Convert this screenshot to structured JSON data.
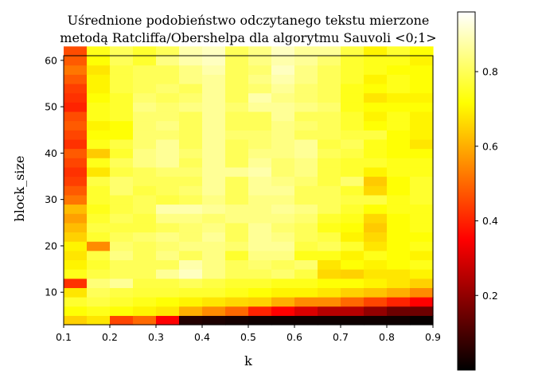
{
  "chart_data": {
    "type": "heatmap",
    "title_lines": [
      "Uśrednione podobieństwo odczytanego tekstu mierzone",
      "metodą Ratcliffa/Obershelpa dla algorytmu Sauvoli <0;1>"
    ],
    "xlabel": "k",
    "ylabel": "block_size",
    "x_range": [
      0.1,
      0.9
    ],
    "y_range": [
      3,
      61
    ],
    "x_ticks": [
      0.1,
      0.2,
      0.3,
      0.4,
      0.5,
      0.6,
      0.7,
      0.8,
      0.9
    ],
    "y_ticks": [
      10,
      20,
      30,
      40,
      50,
      60
    ],
    "x_tick_labels": [
      "0.1",
      "0.2",
      "0.3",
      "0.4",
      "0.5",
      "0.6",
      "0.7",
      "0.8",
      "0.9"
    ],
    "y_tick_labels": [
      "10",
      "20",
      "30",
      "40",
      "50",
      "60"
    ],
    "x_bin_start": 0.1,
    "x_bin_width": 0.05,
    "y_bin_start": 3,
    "y_bin_width": 2,
    "colormap": "hot",
    "colorbar": {
      "range": [
        0.0,
        0.96
      ],
      "ticks": [
        0.2,
        0.4,
        0.6,
        0.8
      ],
      "tick_labels": [
        "0.2",
        "0.4",
        "0.6",
        "0.8"
      ]
    },
    "values": [
      [
        0.65,
        0.68,
        0.45,
        0.5,
        0.35,
        0.05,
        0.04,
        0.03,
        0.02,
        0.02,
        0.02,
        0.02,
        0.02,
        0.02,
        0.02,
        0.01
      ],
      [
        0.72,
        0.74,
        0.72,
        0.7,
        0.68,
        0.6,
        0.55,
        0.5,
        0.4,
        0.35,
        0.3,
        0.25,
        0.25,
        0.2,
        0.15,
        0.15
      ],
      [
        0.76,
        0.78,
        0.76,
        0.74,
        0.72,
        0.7,
        0.68,
        0.66,
        0.65,
        0.6,
        0.55,
        0.55,
        0.5,
        0.45,
        0.4,
        0.35
      ],
      [
        0.68,
        0.8,
        0.78,
        0.77,
        0.77,
        0.76,
        0.76,
        0.74,
        0.72,
        0.7,
        0.7,
        0.68,
        0.65,
        0.63,
        0.6,
        0.55
      ],
      [
        0.42,
        0.83,
        0.86,
        0.78,
        0.78,
        0.8,
        0.78,
        0.76,
        0.76,
        0.74,
        0.74,
        0.72,
        0.72,
        0.7,
        0.68,
        0.65
      ],
      [
        0.74,
        0.78,
        0.8,
        0.8,
        0.86,
        0.9,
        0.84,
        0.8,
        0.8,
        0.82,
        0.78,
        0.66,
        0.65,
        0.68,
        0.68,
        0.7
      ],
      [
        0.7,
        0.76,
        0.8,
        0.8,
        0.8,
        0.88,
        0.84,
        0.8,
        0.82,
        0.8,
        0.82,
        0.68,
        0.72,
        0.7,
        0.72,
        0.74
      ],
      [
        0.68,
        0.78,
        0.84,
        0.8,
        0.84,
        0.8,
        0.84,
        0.76,
        0.84,
        0.84,
        0.74,
        0.74,
        0.7,
        0.74,
        0.72,
        0.7
      ],
      [
        0.7,
        0.55,
        0.82,
        0.8,
        0.82,
        0.84,
        0.84,
        0.82,
        0.86,
        0.86,
        0.78,
        0.8,
        0.76,
        0.68,
        0.72,
        0.74
      ],
      [
        0.65,
        0.76,
        0.8,
        0.82,
        0.84,
        0.82,
        0.86,
        0.8,
        0.86,
        0.84,
        0.8,
        0.78,
        0.7,
        0.66,
        0.72,
        0.72
      ],
      [
        0.62,
        0.78,
        0.78,
        0.78,
        0.8,
        0.82,
        0.84,
        0.8,
        0.86,
        0.82,
        0.8,
        0.74,
        0.72,
        0.64,
        0.72,
        0.74
      ],
      [
        0.58,
        0.76,
        0.8,
        0.78,
        0.84,
        0.84,
        0.82,
        0.84,
        0.84,
        0.84,
        0.82,
        0.76,
        0.74,
        0.66,
        0.72,
        0.74
      ],
      [
        0.62,
        0.74,
        0.78,
        0.8,
        0.88,
        0.88,
        0.86,
        0.84,
        0.84,
        0.86,
        0.84,
        0.8,
        0.76,
        0.72,
        0.74,
        0.74
      ],
      [
        0.52,
        0.76,
        0.78,
        0.8,
        0.78,
        0.8,
        0.84,
        0.8,
        0.84,
        0.84,
        0.8,
        0.8,
        0.78,
        0.78,
        0.74,
        0.76
      ],
      [
        0.48,
        0.76,
        0.82,
        0.78,
        0.8,
        0.82,
        0.86,
        0.8,
        0.86,
        0.86,
        0.8,
        0.8,
        0.76,
        0.66,
        0.72,
        0.76
      ],
      [
        0.44,
        0.78,
        0.82,
        0.8,
        0.8,
        0.8,
        0.86,
        0.8,
        0.86,
        0.84,
        0.82,
        0.78,
        0.82,
        0.64,
        0.72,
        0.76
      ],
      [
        0.42,
        0.68,
        0.78,
        0.8,
        0.82,
        0.82,
        0.86,
        0.86,
        0.88,
        0.82,
        0.84,
        0.78,
        0.76,
        0.7,
        0.74,
        0.74
      ],
      [
        0.45,
        0.74,
        0.8,
        0.84,
        0.86,
        0.8,
        0.86,
        0.8,
        0.86,
        0.82,
        0.84,
        0.78,
        0.76,
        0.76,
        0.74,
        0.74
      ],
      [
        0.48,
        0.64,
        0.76,
        0.84,
        0.86,
        0.82,
        0.86,
        0.8,
        0.84,
        0.84,
        0.86,
        0.8,
        0.78,
        0.74,
        0.72,
        0.72
      ],
      [
        0.42,
        0.74,
        0.78,
        0.82,
        0.86,
        0.8,
        0.86,
        0.8,
        0.82,
        0.84,
        0.86,
        0.78,
        0.8,
        0.74,
        0.72,
        0.68
      ],
      [
        0.45,
        0.72,
        0.72,
        0.82,
        0.82,
        0.8,
        0.86,
        0.82,
        0.82,
        0.84,
        0.8,
        0.8,
        0.78,
        0.78,
        0.72,
        0.7
      ],
      [
        0.48,
        0.7,
        0.72,
        0.82,
        0.84,
        0.8,
        0.86,
        0.8,
        0.8,
        0.84,
        0.82,
        0.8,
        0.76,
        0.72,
        0.74,
        0.7
      ],
      [
        0.46,
        0.74,
        0.76,
        0.82,
        0.82,
        0.8,
        0.86,
        0.8,
        0.8,
        0.86,
        0.8,
        0.8,
        0.76,
        0.7,
        0.74,
        0.7
      ],
      [
        0.4,
        0.74,
        0.76,
        0.84,
        0.82,
        0.84,
        0.86,
        0.82,
        0.86,
        0.86,
        0.84,
        0.82,
        0.74,
        0.72,
        0.72,
        0.72
      ],
      [
        0.42,
        0.72,
        0.76,
        0.82,
        0.8,
        0.82,
        0.86,
        0.8,
        0.88,
        0.84,
        0.82,
        0.8,
        0.74,
        0.68,
        0.7,
        0.7
      ],
      [
        0.44,
        0.7,
        0.78,
        0.8,
        0.82,
        0.8,
        0.86,
        0.8,
        0.82,
        0.86,
        0.82,
        0.8,
        0.74,
        0.72,
        0.74,
        0.72
      ],
      [
        0.48,
        0.7,
        0.78,
        0.8,
        0.8,
        0.84,
        0.86,
        0.8,
        0.84,
        0.88,
        0.84,
        0.8,
        0.76,
        0.7,
        0.74,
        0.72
      ],
      [
        0.52,
        0.68,
        0.78,
        0.8,
        0.8,
        0.84,
        0.88,
        0.8,
        0.82,
        0.9,
        0.84,
        0.8,
        0.76,
        0.74,
        0.72,
        0.72
      ],
      [
        0.48,
        0.72,
        0.8,
        0.76,
        0.84,
        0.88,
        0.9,
        0.8,
        0.84,
        0.88,
        0.86,
        0.82,
        0.76,
        0.74,
        0.74,
        0.7
      ],
      [
        0.46,
        0.74,
        0.8,
        0.76,
        0.8,
        0.88,
        0.9,
        0.8,
        0.84,
        0.9,
        0.86,
        0.86,
        0.78,
        0.7,
        0.76,
        0.72
      ]
    ]
  }
}
